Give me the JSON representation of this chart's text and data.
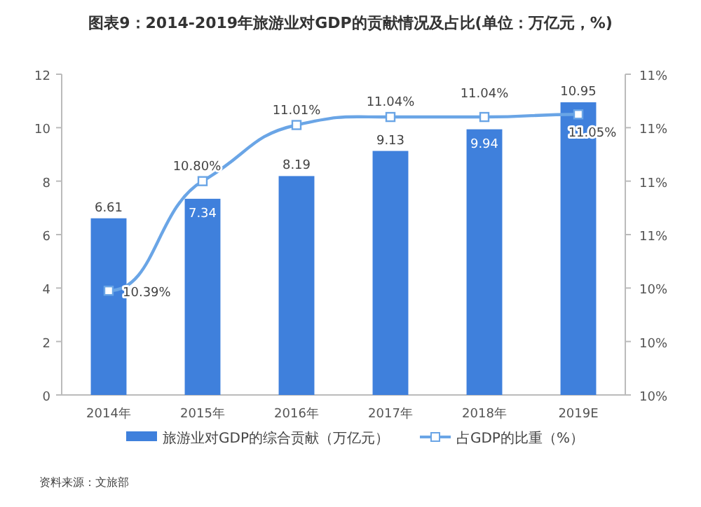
{
  "chart_data": {
    "type": "bar",
    "title": "图表9：2014-2019年旅游业对GDP的贡献情况及占比(单位：万亿元，%)",
    "categories": [
      "2014年",
      "2015年",
      "2016年",
      "2017年",
      "2018年",
      "2019E"
    ],
    "series": [
      {
        "name": "旅游业对GDP的综合贡献（万亿元）",
        "color": "#3f80dc",
        "values": [
          6.61,
          7.34,
          8.19,
          9.13,
          9.94,
          10.95
        ]
      },
      {
        "name": "占GDP的比重（%）",
        "type": "line",
        "axis": "y2",
        "color": "#6aa5e6",
        "marker": "square",
        "values": [
          10.39,
          10.8,
          11.01,
          11.04,
          11.04,
          11.05
        ],
        "value_labels": [
          "10.39%",
          "10.80%",
          "11.01%",
          "11.04%",
          "11.04%",
          "11.05%"
        ]
      }
    ],
    "ylim": [
      0,
      12
    ],
    "yticks": [
      0,
      2,
      4,
      6,
      8,
      10,
      12
    ],
    "y2lim": [
      10,
      11.2
    ],
    "y2ticks": [
      {
        "value": 10,
        "label": "10%"
      },
      {
        "value": 10.2,
        "label": "10%"
      },
      {
        "value": 10.4,
        "label": "10%"
      },
      {
        "value": 10.6,
        "label": "11%"
      },
      {
        "value": 10.8,
        "label": "11%"
      },
      {
        "value": 11,
        "label": "11%"
      },
      {
        "value": 11.2,
        "label": "11%"
      }
    ],
    "data_labels": true,
    "grid": false,
    "legend": "bottom",
    "annotations": [
      "资料来源：文旅部"
    ]
  }
}
